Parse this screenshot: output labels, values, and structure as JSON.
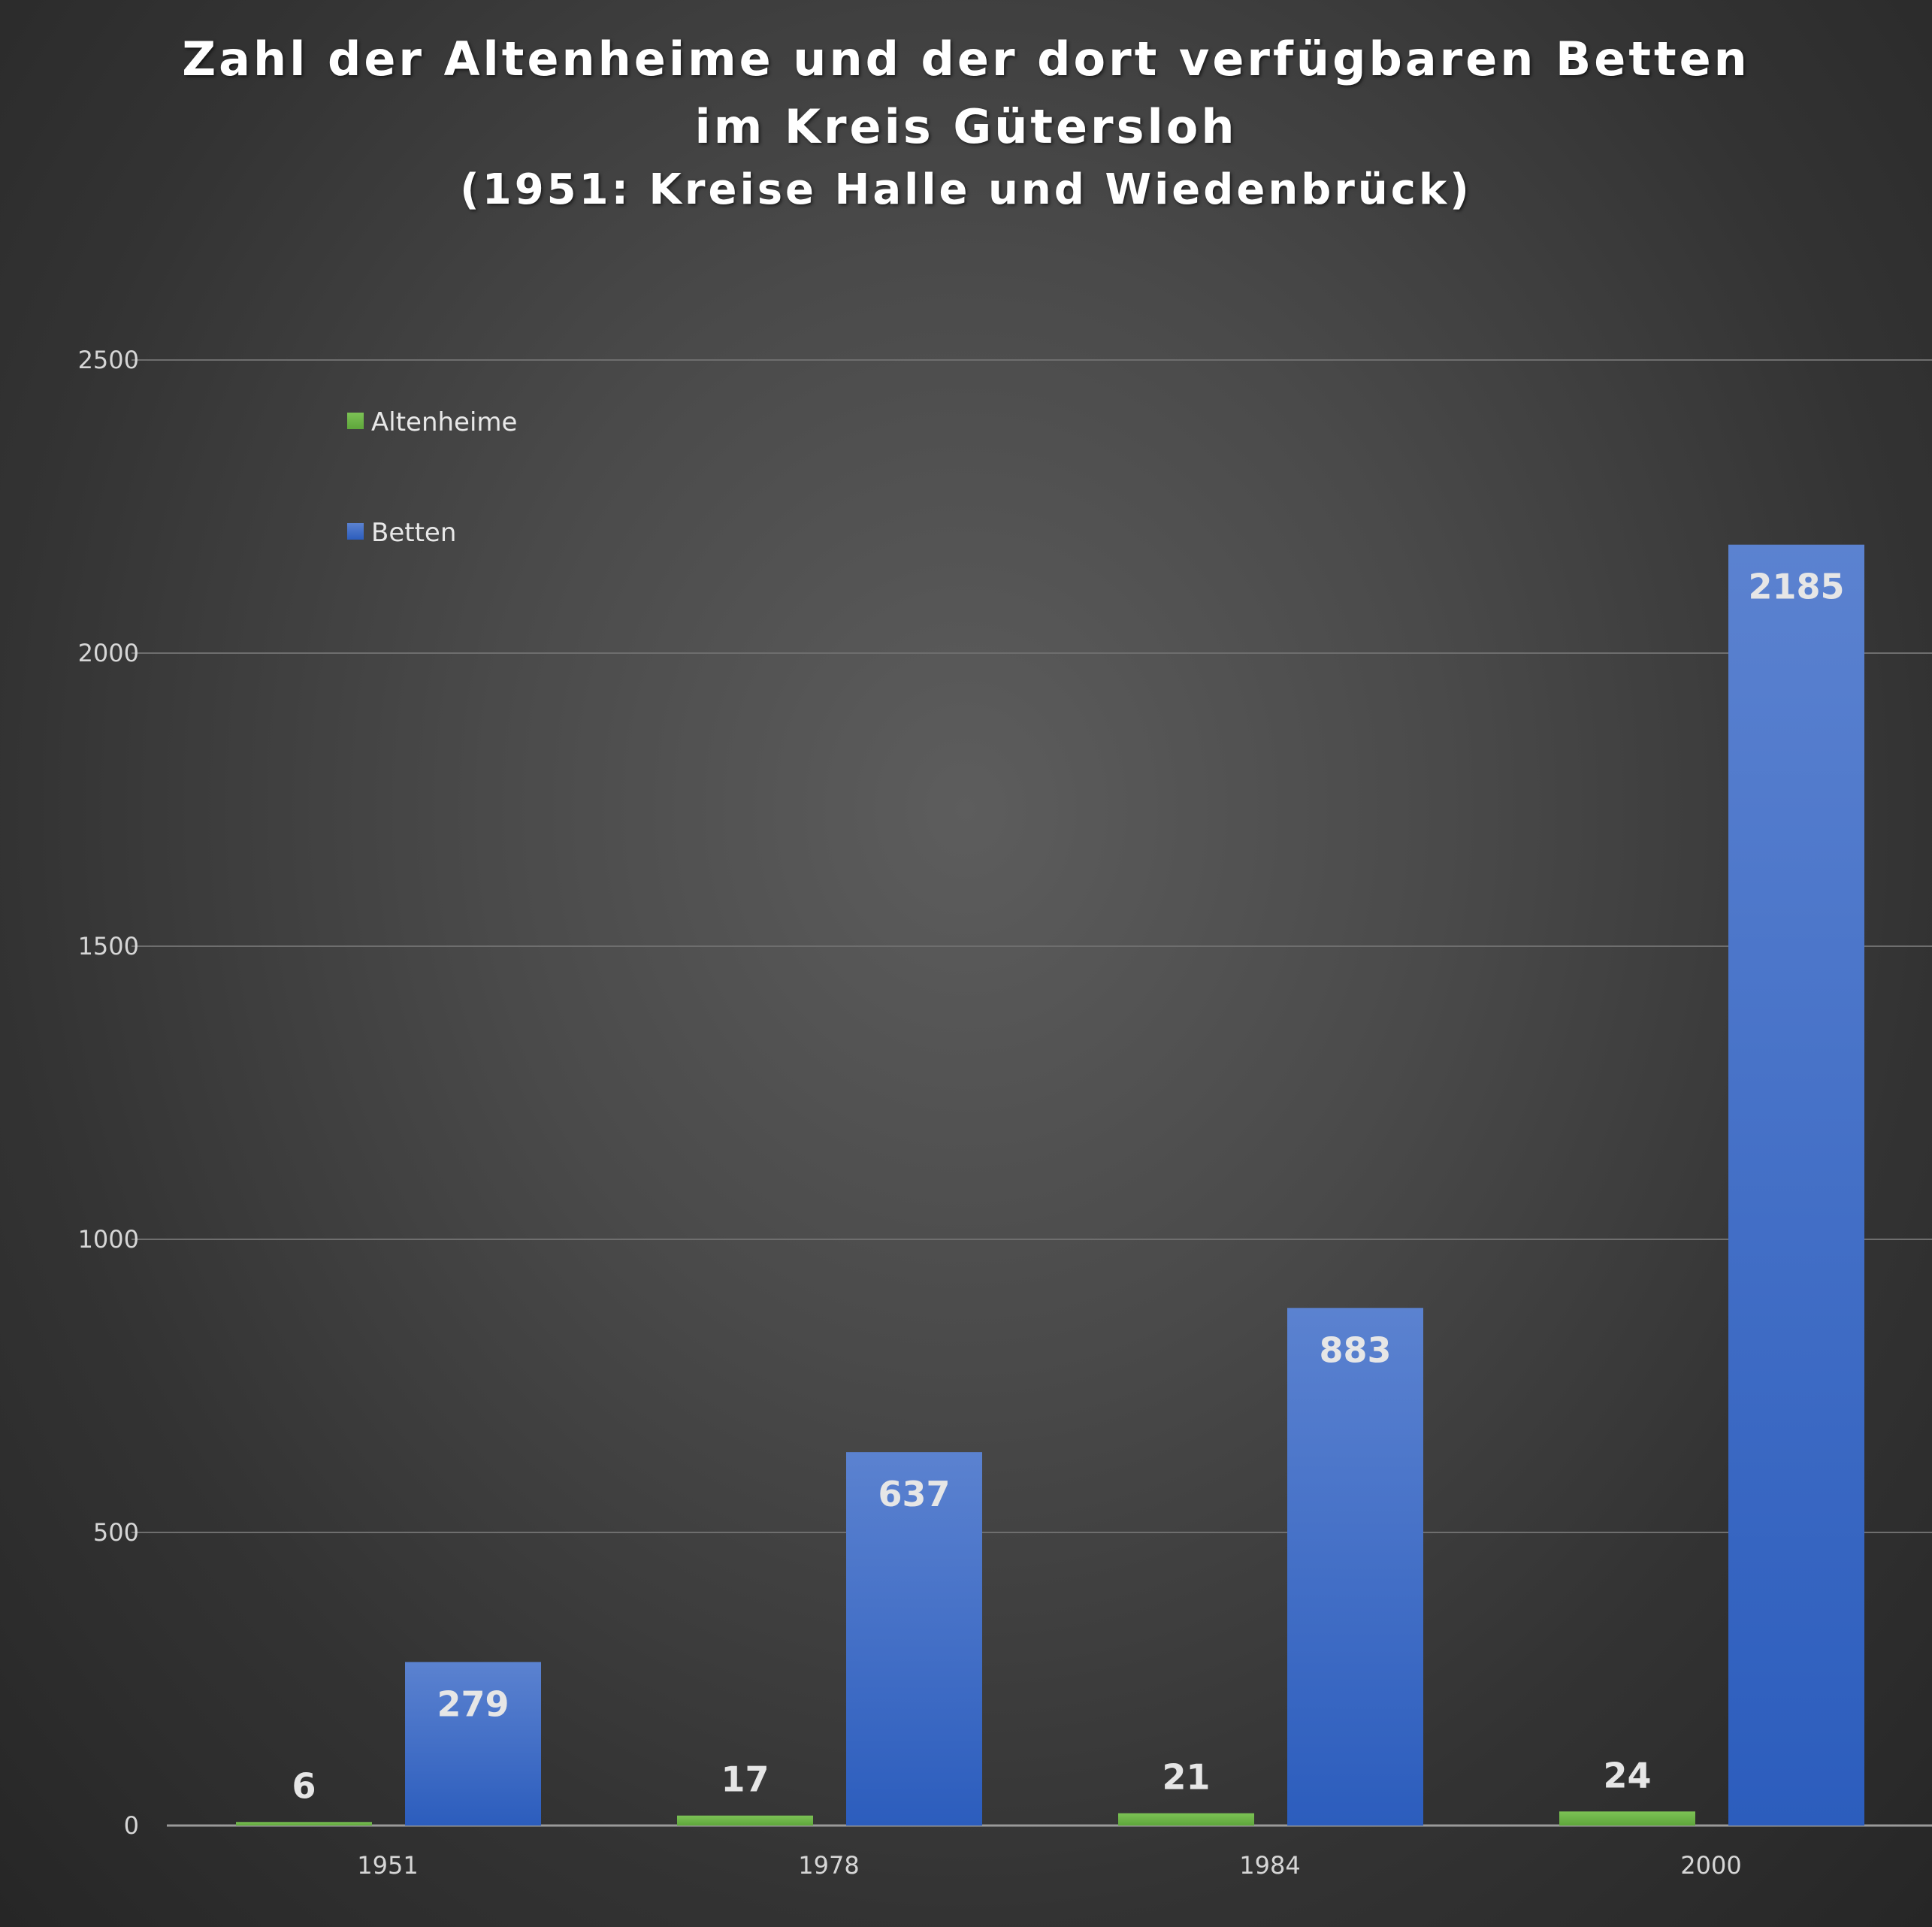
{
  "chart_data": {
    "type": "bar",
    "title": "Zahl der Altenheime und der dort verfügbaren Betten",
    "title_line2": "im Kreis Gütersloh",
    "subtitle": "(1951: Kreise Halle und Wiedenbrück)",
    "xlabel": "",
    "ylabel": "",
    "categories": [
      "1951",
      "1978",
      "1984",
      "2000"
    ],
    "series": [
      {
        "name": "Altenheime",
        "values": [
          6,
          17,
          21,
          24
        ],
        "color": "#6fb54a"
      },
      {
        "name": "Betten",
        "values": [
          279,
          637,
          883,
          2185
        ],
        "color": "#3d6fcf"
      }
    ],
    "ylim": [
      0,
      2500
    ],
    "yticks": [
      0,
      500,
      1000,
      1500,
      2000,
      2500
    ],
    "grid": true,
    "legend_position": "top-left",
    "data_labels": true
  }
}
